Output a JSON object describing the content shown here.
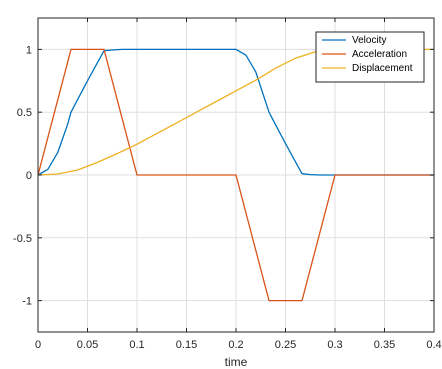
{
  "chart_data": {
    "type": "line",
    "title": "",
    "xlabel": "time",
    "ylabel": "",
    "xlim": [
      0,
      0.4
    ],
    "ylim": [
      -1.25,
      1.25
    ],
    "xticks": [
      0,
      0.05,
      0.1,
      0.15,
      0.2,
      0.25,
      0.3,
      0.35,
      0.4
    ],
    "xtick_labels": [
      "0",
      "0.05",
      "0.1",
      "0.15",
      "0.2",
      "0.25",
      "0.3",
      "0.35",
      "0.4"
    ],
    "yticks": [
      -1,
      -0.5,
      0,
      0.5,
      1
    ],
    "ytick_labels": [
      "-1",
      "-0.5",
      "0",
      "0.5",
      "1"
    ],
    "grid": true,
    "legend_position": "top-right",
    "series": [
      {
        "name": "Velocity",
        "color": "#0072BD",
        "x": [
          0,
          0.01,
          0.02,
          0.03,
          0.0333,
          0.04,
          0.05,
          0.0667,
          0.075,
          0.085,
          0.1,
          0.2,
          0.21,
          0.22,
          0.2333,
          0.24,
          0.25,
          0.2667,
          0.275,
          0.285,
          0.3,
          0.4
        ],
        "y": [
          0,
          0.045,
          0.18,
          0.405,
          0.5,
          0.6,
          0.75,
          0.99,
          0.995,
          1.0,
          1.0,
          1.0,
          0.955,
          0.82,
          0.5,
          0.4,
          0.25,
          0.01,
          0.003,
          0,
          0,
          0
        ]
      },
      {
        "name": "Acceleration",
        "color": "#D95319",
        "x": [
          0,
          0.0333,
          0.0667,
          0.1,
          0.2,
          0.2333,
          0.2667,
          0.3,
          0.4
        ],
        "y": [
          0,
          1,
          1,
          0,
          0,
          -1,
          -1,
          0,
          0
        ]
      },
      {
        "name": "Displacement",
        "color": "#EDB120",
        "x": [
          0,
          0.02,
          0.04,
          0.06,
          0.08,
          0.1,
          0.12,
          0.14,
          0.16,
          0.18,
          0.2,
          0.22,
          0.24,
          0.26,
          0.28,
          0.3,
          0.32,
          0.34,
          0.36,
          0.38,
          0.4
        ],
        "y": [
          0,
          0.008,
          0.04,
          0.1,
          0.17,
          0.245,
          0.33,
          0.415,
          0.5,
          0.585,
          0.67,
          0.755,
          0.85,
          0.93,
          0.98,
          1.0,
          1.0,
          1.0,
          1.0,
          1.0,
          1.0
        ]
      }
    ]
  }
}
